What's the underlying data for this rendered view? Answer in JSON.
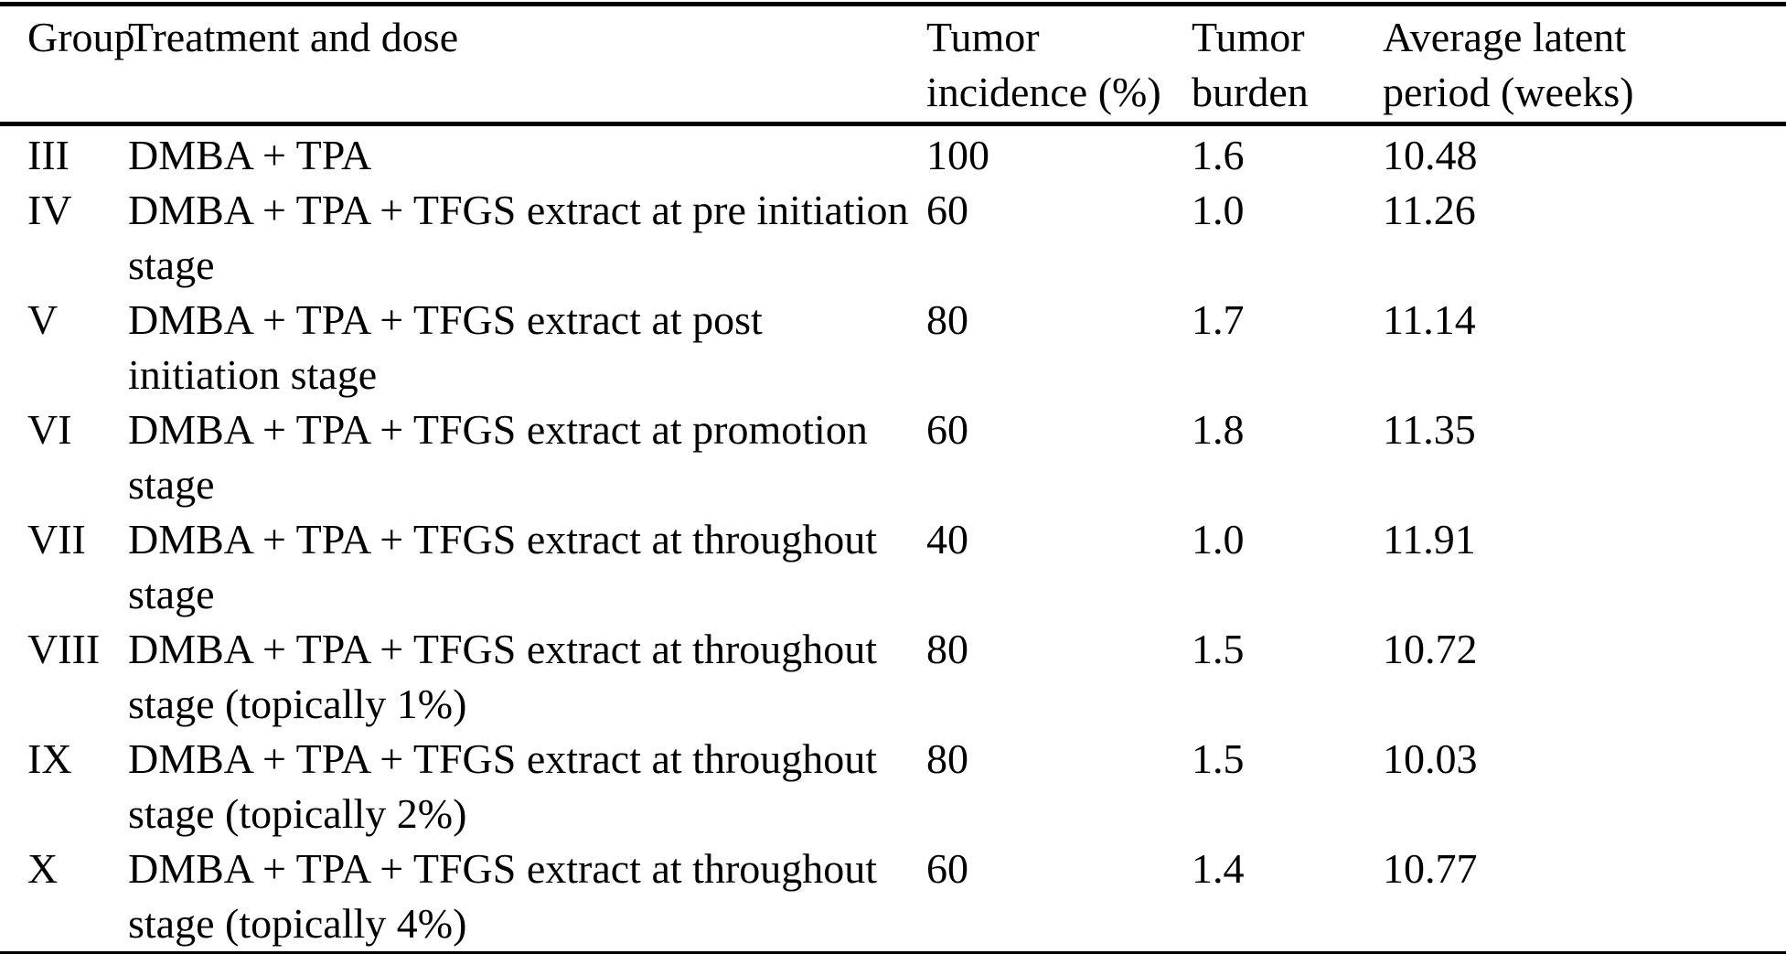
{
  "table": {
    "columns": [
      {
        "label": "Group"
      },
      {
        "label": "Treatment and dose"
      },
      {
        "label": "Tumor\nincidence (%)"
      },
      {
        "label": "Tumor\nburden"
      },
      {
        "label": "Average latent\nperiod (weeks)"
      }
    ],
    "rows": [
      {
        "group": "III",
        "treatment": "DMBA + TPA",
        "incidence": "100",
        "burden": "1.6",
        "latent": "10.48"
      },
      {
        "group": "IV",
        "treatment": "DMBA + TPA + TFGS extract at pre initiation\nstage",
        "incidence": "60",
        "burden": "1.0",
        "latent": "11.26"
      },
      {
        "group": "V",
        "treatment": "DMBA + TPA + TFGS extract at post\ninitiation stage",
        "incidence": "80",
        "burden": "1.7",
        "latent": "11.14"
      },
      {
        "group": "VI",
        "treatment": "DMBA + TPA + TFGS extract at promotion\nstage",
        "incidence": "60",
        "burden": "1.8",
        "latent": "11.35"
      },
      {
        "group": "VII",
        "treatment": "DMBA + TPA + TFGS extract at throughout\nstage",
        "incidence": "40",
        "burden": "1.0",
        "latent": "11.91"
      },
      {
        "group": "VIII",
        "treatment": "DMBA + TPA + TFGS extract at throughout\nstage (topically 1%)",
        "incidence": "80",
        "burden": "1.5",
        "latent": "10.72"
      },
      {
        "group": "IX",
        "treatment": "DMBA + TPA + TFGS extract at throughout\nstage (topically 2%)",
        "incidence": "80",
        "burden": "1.5",
        "latent": "10.03"
      },
      {
        "group": "X",
        "treatment": "DMBA + TPA + TFGS extract at throughout\nstage (topically 4%)",
        "incidence": "60",
        "burden": "1.4",
        "latent": "10.77"
      }
    ]
  },
  "chart_data": {
    "type": "table",
    "columns": [
      "Group",
      "Treatment and dose",
      "Tumor incidence (%)",
      "Tumor burden",
      "Average latent period (weeks)"
    ],
    "rows": [
      [
        "III",
        "DMBA + TPA",
        100,
        1.6,
        10.48
      ],
      [
        "IV",
        "DMBA + TPA + TFGS extract at pre initiation stage",
        60,
        1.0,
        11.26
      ],
      [
        "V",
        "DMBA + TPA + TFGS extract at post initiation stage",
        80,
        1.7,
        11.14
      ],
      [
        "VI",
        "DMBA + TPA + TFGS extract at promotion stage",
        60,
        1.8,
        11.35
      ],
      [
        "VII",
        "DMBA + TPA + TFGS extract at throughout stage",
        40,
        1.0,
        11.91
      ],
      [
        "VIII",
        "DMBA + TPA + TFGS extract at throughout stage (topically 1%)",
        80,
        1.5,
        10.72
      ],
      [
        "IX",
        "DMBA + TPA + TFGS extract at throughout stage (topically 2%)",
        80,
        1.5,
        10.03
      ],
      [
        "X",
        "DMBA + TPA + TFGS extract at throughout stage (topically 4%)",
        60,
        1.4,
        10.77
      ]
    ]
  }
}
